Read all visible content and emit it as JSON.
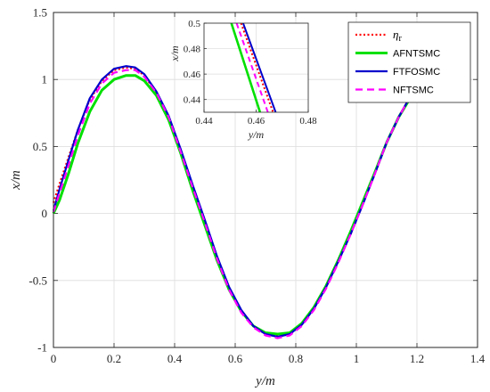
{
  "chart_data": {
    "type": "line",
    "xlabel": "y/m",
    "ylabel": "x/m",
    "xlim": [
      0,
      1.4
    ],
    "ylim": [
      -1,
      1.5
    ],
    "xticks": [
      "0",
      "0.2",
      "0.4",
      "0.6",
      "0.8",
      "1",
      "1.2",
      "1.4"
    ],
    "yticks": [
      "-1",
      "-0.5",
      "0",
      "0.5",
      "1",
      "1.5"
    ],
    "grid": true,
    "legend_position": "top-right",
    "series": [
      {
        "name": "η_r",
        "legend_main": "η",
        "legend_sub": "r",
        "color": "#ff0000",
        "style": "dotted",
        "x": [
          0,
          0.02,
          0.05,
          0.08,
          0.12,
          0.16,
          0.2,
          0.24,
          0.27,
          0.3,
          0.34,
          0.38,
          0.42,
          0.46,
          0.5,
          0.54,
          0.58,
          0.62,
          0.66,
          0.7,
          0.74,
          0.78,
          0.82,
          0.86,
          0.9,
          0.94,
          0.98,
          1.02,
          1.06,
          1.1,
          1.14,
          1.18,
          1.22
        ],
        "y": [
          0.08,
          0.22,
          0.42,
          0.62,
          0.85,
          0.99,
          1.07,
          1.09,
          1.08,
          1.03,
          0.9,
          0.72,
          0.47,
          0.2,
          -0.06,
          -0.33,
          -0.56,
          -0.73,
          -0.84,
          -0.9,
          -0.91,
          -0.9,
          -0.83,
          -0.71,
          -0.55,
          -0.36,
          -0.16,
          0.06,
          0.29,
          0.53,
          0.72,
          0.88,
          0.98
        ]
      },
      {
        "name": "AFNTSMC",
        "color": "#00e000",
        "style": "solid",
        "x": [
          0,
          0.02,
          0.05,
          0.08,
          0.12,
          0.16,
          0.2,
          0.24,
          0.27,
          0.3,
          0.34,
          0.38,
          0.42,
          0.46,
          0.5,
          0.54,
          0.58,
          0.62,
          0.66,
          0.7,
          0.74,
          0.78,
          0.82,
          0.86,
          0.9,
          0.94,
          0.98,
          1.02,
          1.06,
          1.1,
          1.14,
          1.18,
          1.22
        ],
        "y": [
          0,
          0.1,
          0.3,
          0.52,
          0.76,
          0.92,
          1.0,
          1.03,
          1.03,
          0.99,
          0.88,
          0.7,
          0.45,
          0.17,
          -0.09,
          -0.35,
          -0.57,
          -0.73,
          -0.84,
          -0.89,
          -0.9,
          -0.89,
          -0.82,
          -0.7,
          -0.54,
          -0.35,
          -0.14,
          0.08,
          0.3,
          0.53,
          0.72,
          0.87,
          0.98
        ]
      },
      {
        "name": "FTFOSMC",
        "color": "#0000cc",
        "style": "solid",
        "x": [
          0,
          0.02,
          0.05,
          0.08,
          0.12,
          0.16,
          0.2,
          0.24,
          0.27,
          0.3,
          0.34,
          0.38,
          0.42,
          0.46,
          0.5,
          0.54,
          0.58,
          0.62,
          0.66,
          0.7,
          0.74,
          0.78,
          0.82,
          0.86,
          0.9,
          0.94,
          0.98,
          1.02,
          1.06,
          1.1,
          1.14,
          1.18,
          1.22
        ],
        "y": [
          0.02,
          0.18,
          0.4,
          0.62,
          0.86,
          1.0,
          1.08,
          1.1,
          1.09,
          1.04,
          0.91,
          0.73,
          0.48,
          0.21,
          -0.05,
          -0.32,
          -0.55,
          -0.72,
          -0.84,
          -0.9,
          -0.92,
          -0.9,
          -0.83,
          -0.71,
          -0.55,
          -0.36,
          -0.16,
          0.06,
          0.29,
          0.53,
          0.72,
          0.88,
          0.98
        ]
      },
      {
        "name": "NFTSMC",
        "color": "#ff00ff",
        "style": "dashed",
        "x": [
          0,
          0.02,
          0.05,
          0.08,
          0.12,
          0.16,
          0.2,
          0.24,
          0.27,
          0.3,
          0.34,
          0.38,
          0.42,
          0.46,
          0.5,
          0.54,
          0.58,
          0.62,
          0.66,
          0.7,
          0.74,
          0.78,
          0.82,
          0.86,
          0.9,
          0.94,
          0.98,
          1.02,
          1.06,
          1.1,
          1.14,
          1.18,
          1.22
        ],
        "y": [
          0.01,
          0.15,
          0.36,
          0.58,
          0.82,
          0.97,
          1.05,
          1.07,
          1.07,
          1.02,
          0.9,
          0.72,
          0.46,
          0.19,
          -0.07,
          -0.34,
          -0.57,
          -0.74,
          -0.85,
          -0.91,
          -0.93,
          -0.91,
          -0.84,
          -0.72,
          -0.56,
          -0.37,
          -0.16,
          0.06,
          0.29,
          0.53,
          0.72,
          0.88,
          0.98
        ]
      }
    ],
    "inset": {
      "xlabel": "y/m",
      "ylabel": "x/m",
      "xlim": [
        0.44,
        0.48
      ],
      "ylim": [
        0.43,
        0.5
      ],
      "xticks": [
        "0.44",
        "0.46",
        "0.48"
      ],
      "yticks": [
        "0.44",
        "0.46",
        "0.48",
        "0.5"
      ],
      "lines": [
        {
          "name": "AFNTSMC",
          "x": [
            0.4505,
            0.4615
          ],
          "y": [
            0.5,
            0.43
          ]
        },
        {
          "name": "NFTSMC",
          "x": [
            0.4525,
            0.4645
          ],
          "y": [
            0.5,
            0.43
          ]
        },
        {
          "name": "η_r",
          "x": [
            0.4542,
            0.4665
          ],
          "y": [
            0.5,
            0.43
          ]
        },
        {
          "name": "FTFOSMC",
          "x": [
            0.455,
            0.4675
          ],
          "y": [
            0.5,
            0.43
          ]
        }
      ]
    }
  }
}
